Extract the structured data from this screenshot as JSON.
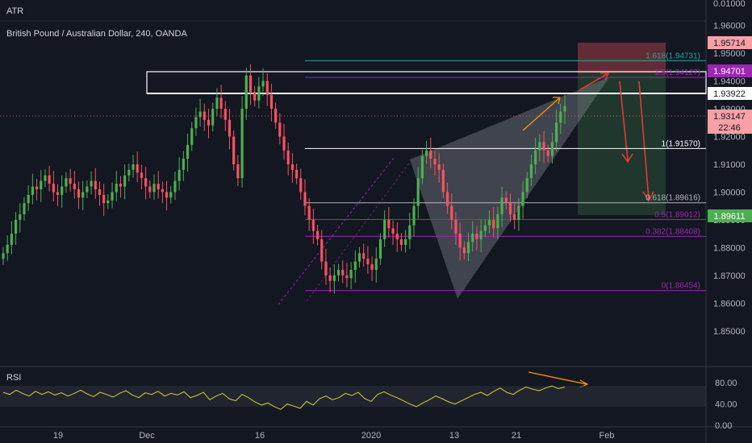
{
  "chart_data": {
    "type": "candlestick",
    "symbol_line": "British Pound / Australian Dollar, 240, OANDA",
    "top_pane_label": "ATR",
    "top_pane_value": "0.01000",
    "x_tick_labels": [
      "19",
      "Dec",
      "16",
      "2020",
      "13",
      "21",
      "Feb"
    ],
    "price_axis_ticks": [
      "1.96000",
      "1.95000",
      "1.94000",
      "1.93000",
      "1.92000",
      "1.91000",
      "1.90000",
      "1.89000",
      "1.88000",
      "1.87000",
      "1.86000",
      "1.85000"
    ],
    "price_range": [
      1.843,
      1.968
    ],
    "price_close_approx": [
      1.878,
      1.881,
      1.885,
      1.89,
      1.892,
      1.896,
      1.899,
      1.902,
      1.901,
      1.904,
      1.906,
      1.903,
      1.9,
      1.899,
      1.902,
      1.905,
      1.903,
      1.901,
      1.898,
      1.9,
      1.902,
      1.904,
      1.901,
      1.899,
      1.896,
      1.897,
      1.9,
      1.903,
      1.902,
      1.906,
      1.908,
      1.91,
      1.907,
      1.905,
      1.902,
      1.9,
      1.903,
      1.901,
      1.9,
      1.898,
      1.9,
      1.904,
      1.908,
      1.912,
      1.917,
      1.923,
      1.927,
      1.929,
      1.926,
      1.924,
      1.93,
      1.934,
      1.93,
      1.926,
      1.92,
      1.91,
      1.905,
      1.93,
      1.942,
      1.936,
      1.933,
      1.938,
      1.94,
      1.935,
      1.93,
      1.925,
      1.92,
      1.915,
      1.91,
      1.908,
      1.905,
      1.9,
      1.895,
      1.89,
      1.886,
      1.883,
      1.875,
      1.87,
      1.868,
      1.87,
      1.872,
      1.87,
      1.869,
      1.872,
      1.875,
      1.878,
      1.876,
      1.874,
      1.872,
      1.876,
      1.883,
      1.89,
      1.887,
      1.885,
      1.883,
      1.881,
      1.883,
      1.888,
      1.895,
      1.905,
      1.913,
      1.915,
      1.912,
      1.91,
      1.908,
      1.9,
      1.895,
      1.89,
      1.885,
      1.88,
      1.878,
      1.882,
      1.885,
      1.883,
      1.886,
      1.888,
      1.89,
      1.887,
      1.892,
      1.898,
      1.896,
      1.892,
      1.89,
      1.895,
      1.9,
      1.905,
      1.91,
      1.915,
      1.918,
      1.915,
      1.913,
      1.918,
      1.925,
      1.929,
      1.931
    ],
    "price_labels": [
      {
        "text": "1.95714",
        "color": "#f7a1a6",
        "text_color": "#131722"
      },
      {
        "text": "1.94701",
        "color": "#9c27b0",
        "text_color": "#ffffff"
      },
      {
        "text": "1.93922",
        "color": "#ffffff",
        "text_color": "#131722"
      },
      {
        "text": "1.93147",
        "color": "#f7a1a6",
        "text_color": "#131722"
      },
      {
        "text": "22:46",
        "color": "#f7a1a6",
        "text_color": "#131722"
      },
      {
        "text": "1.89611",
        "color": "#4caf50",
        "text_color": "#ffffff"
      }
    ],
    "fib_levels": [
      {
        "ratio": "1.618",
        "value": "1.94731",
        "color": "#26a69a"
      },
      {
        "ratio": "1.5",
        "value": "1.94127",
        "color": "#9c27b0"
      },
      {
        "ratio": "1",
        "value": "1.91570",
        "color": "#ffffff"
      },
      {
        "ratio": "0.618",
        "value": "1.89616",
        "color": "#b2b5be"
      },
      {
        "ratio": "0.5",
        "value": "1.89012",
        "color": "#9c27b0"
      },
      {
        "ratio": "0.382",
        "value": "1.88408",
        "color": "#9c27b0"
      },
      {
        "ratio": "0",
        "value": "1.86454",
        "color": "#9c27b0"
      }
    ],
    "rsi": {
      "label": "RSI",
      "range": [
        0,
        100
      ],
      "axis_ticks": [
        "80.00",
        "40.00",
        "0.00"
      ],
      "values_approx": [
        62,
        58,
        66,
        60,
        55,
        64,
        58,
        63,
        57,
        61,
        55,
        60,
        66,
        59,
        54,
        62,
        58,
        53,
        60,
        65,
        57,
        52,
        61,
        58,
        64,
        55,
        60,
        57,
        63,
        52,
        56,
        62,
        48,
        55,
        60,
        50,
        46,
        58,
        52,
        44,
        38,
        42,
        35,
        30,
        40,
        36,
        32,
        45,
        38,
        50,
        55,
        48,
        52,
        60,
        56,
        62,
        50,
        45,
        58,
        63,
        57,
        52,
        46,
        40,
        35,
        42,
        48,
        55,
        50,
        44,
        40,
        46,
        52,
        58,
        62,
        56,
        64,
        70,
        62,
        58,
        66,
        72,
        68,
        65,
        70,
        74,
        69,
        72
      ]
    },
    "colors": {
      "up": "#4caf50",
      "down": "#f7525f",
      "background": "#131722",
      "wedge_fill": "#9598a1",
      "target_zone_green": "#4caf50",
      "stop_zone_red": "#f7525f",
      "arrow_up": "#ff9800",
      "arrow_down": "#e53935"
    }
  }
}
